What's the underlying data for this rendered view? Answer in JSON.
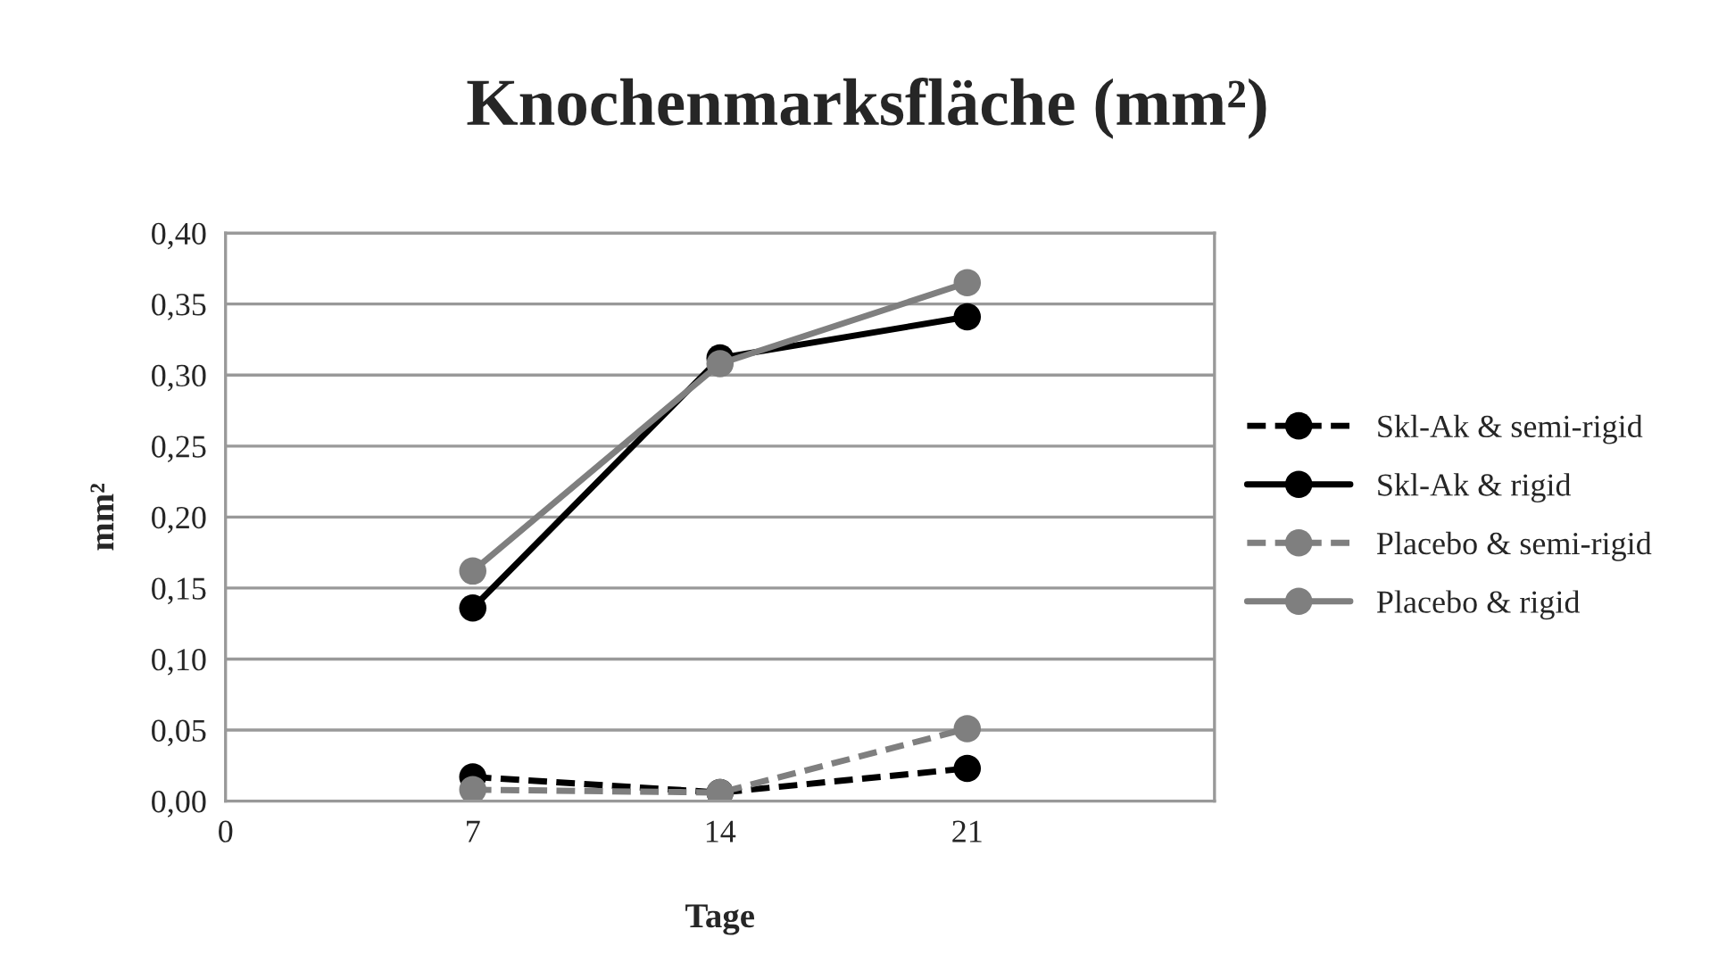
{
  "chart_data": {
    "type": "line",
    "title": "Knochenmarksfläche (mm²)",
    "xlabel": "Tage",
    "ylabel": "mm²",
    "x": [
      7,
      14,
      21
    ],
    "xlim": [
      0,
      28
    ],
    "xticks": [
      0,
      7,
      14,
      21
    ],
    "ylim": [
      0,
      0.4
    ],
    "yticks": [
      {
        "value": 0,
        "label": "0,00"
      },
      {
        "value": 0.05,
        "label": "0,05"
      },
      {
        "value": 0.1,
        "label": "0,10"
      },
      {
        "value": 0.15,
        "label": "0,15"
      },
      {
        "value": 0.2,
        "label": "0,20"
      },
      {
        "value": 0.25,
        "label": "0,25"
      },
      {
        "value": 0.3,
        "label": "0,30"
      },
      {
        "value": 0.35,
        "label": "0,35"
      },
      {
        "value": 0.4,
        "label": "0,40"
      }
    ],
    "grid": "y",
    "legend": "right",
    "marker": "circle",
    "series": [
      {
        "name": "Skl-Ak & semi-rigid",
        "color": "#000000",
        "line_style": "dashed",
        "values": [
          0.017,
          0.006,
          0.023
        ]
      },
      {
        "name": "Skl-Ak & rigid",
        "color": "#000000",
        "line_style": "solid",
        "values": [
          0.136,
          0.312,
          0.341
        ]
      },
      {
        "name": "Placebo & semi-rigid",
        "color": "#7f7f7f",
        "line_style": "dashed",
        "values": [
          0.008,
          0.006,
          0.051
        ]
      },
      {
        "name": "Placebo & rigid",
        "color": "#7f7f7f",
        "line_style": "solid",
        "values": [
          0.162,
          0.308,
          0.365
        ]
      }
    ]
  }
}
